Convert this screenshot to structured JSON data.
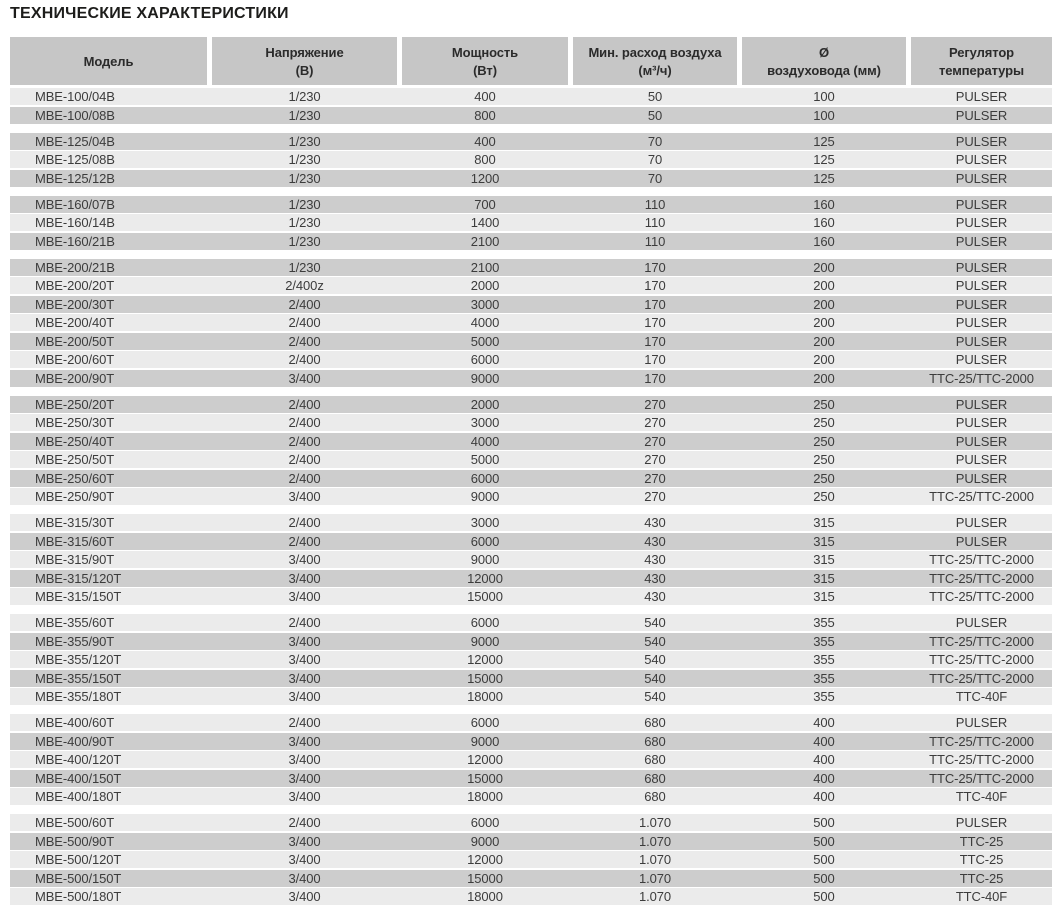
{
  "title": "ТЕХНИЧЕСКИЕ ХАРАКТЕРИСТИКИ",
  "colors": {
    "header_bg": "#c6c6c6",
    "row_light": "#ebebeb",
    "row_dark": "#cdcdcd",
    "text": "#3c3c3c",
    "title_text": "#1d1d1b"
  },
  "table": {
    "headers": [
      {
        "name": "model",
        "line1": "Модель",
        "line2": ""
      },
      {
        "name": "voltage",
        "line1": "Напряжение",
        "line2": "(В)"
      },
      {
        "name": "power",
        "line1": "Мощность",
        "line2": "(Вт)"
      },
      {
        "name": "airflow",
        "line1": "Мин. расход воздуха",
        "line2": "(м³/ч)"
      },
      {
        "name": "diameter",
        "line1": "Ø",
        "line2": "воздуховода (мм)"
      },
      {
        "name": "regulator",
        "line1": "Регулятор",
        "line2": "температуры"
      }
    ],
    "groups": [
      {
        "rows": [
          [
            "MBE-100/04B",
            "1/230",
            "400",
            "50",
            "100",
            "PULSER"
          ],
          [
            "MBE-100/08B",
            "1/230",
            "800",
            "50",
            "100",
            "PULSER"
          ]
        ]
      },
      {
        "rows": [
          [
            "MBE-125/04B",
            "1/230",
            "400",
            "70",
            "125",
            "PULSER"
          ],
          [
            "MBE-125/08B",
            "1/230",
            "800",
            "70",
            "125",
            "PULSER"
          ],
          [
            "MBE-125/12B",
            "1/230",
            "1200",
            "70",
            "125",
            "PULSER"
          ]
        ]
      },
      {
        "rows": [
          [
            "MBE-160/07B",
            "1/230",
            "700",
            "110",
            "160",
            "PULSER"
          ],
          [
            "MBE-160/14B",
            "1/230",
            "1400",
            "110",
            "160",
            "PULSER"
          ],
          [
            "MBE-160/21B",
            "1/230",
            "2100",
            "110",
            "160",
            "PULSER"
          ]
        ]
      },
      {
        "rows": [
          [
            "MBE-200/21B",
            "1/230",
            "2100",
            "170",
            "200",
            "PULSER"
          ],
          [
            "MBE-200/20T",
            "2/400z",
            "2000",
            "170",
            "200",
            "PULSER"
          ],
          [
            "MBE-200/30T",
            "2/400",
            "3000",
            "170",
            "200",
            "PULSER"
          ],
          [
            "MBE-200/40T",
            "2/400",
            "4000",
            "170",
            "200",
            "PULSER"
          ],
          [
            "MBE-200/50T",
            "2/400",
            "5000",
            "170",
            "200",
            "PULSER"
          ],
          [
            "MBE-200/60T",
            "2/400",
            "6000",
            "170",
            "200",
            "PULSER"
          ],
          [
            "MBE-200/90T",
            "3/400",
            "9000",
            "170",
            "200",
            "TTC-25/TTC-2000"
          ]
        ]
      },
      {
        "rows": [
          [
            "MBE-250/20T",
            "2/400",
            "2000",
            "270",
            "250",
            "PULSER"
          ],
          [
            "MBE-250/30T",
            "2/400",
            "3000",
            "270",
            "250",
            "PULSER"
          ],
          [
            "MBE-250/40T",
            "2/400",
            "4000",
            "270",
            "250",
            "PULSER"
          ],
          [
            "MBE-250/50T",
            "2/400",
            "5000",
            "270",
            "250",
            "PULSER"
          ],
          [
            "MBE-250/60T",
            "2/400",
            "6000",
            "270",
            "250",
            "PULSER"
          ],
          [
            "MBE-250/90T",
            "3/400",
            "9000",
            "270",
            "250",
            "TTC-25/TTC-2000"
          ]
        ]
      },
      {
        "rows": [
          [
            "MBE-315/30T",
            "2/400",
            "3000",
            "430",
            "315",
            "PULSER"
          ],
          [
            "MBE-315/60T",
            "2/400",
            "6000",
            "430",
            "315",
            "PULSER"
          ],
          [
            "MBE-315/90T",
            "3/400",
            "9000",
            "430",
            "315",
            "TTC-25/TTC-2000"
          ],
          [
            "MBE-315/120T",
            "3/400",
            "12000",
            "430",
            "315",
            "TTC-25/TTC-2000"
          ],
          [
            "MBE-315/150T",
            "3/400",
            "15000",
            "430",
            "315",
            "TTC-25/TTC-2000"
          ]
        ]
      },
      {
        "rows": [
          [
            "MBE-355/60T",
            "2/400",
            "6000",
            "540",
            "355",
            "PULSER"
          ],
          [
            "MBE-355/90T",
            "3/400",
            "9000",
            "540",
            "355",
            "TTC-25/TTC-2000"
          ],
          [
            "MBE-355/120T",
            "3/400",
            "12000",
            "540",
            "355",
            "TTC-25/TTC-2000"
          ],
          [
            "MBE-355/150T",
            "3/400",
            "15000",
            "540",
            "355",
            "TTC-25/TTC-2000"
          ],
          [
            "MBE-355/180T",
            "3/400",
            "18000",
            "540",
            "355",
            "TTC-40F"
          ]
        ]
      },
      {
        "rows": [
          [
            "MBE-400/60T",
            "2/400",
            "6000",
            "680",
            "400",
            "PULSER"
          ],
          [
            "MBE-400/90T",
            "3/400",
            "9000",
            "680",
            "400",
            "TTC-25/TTC-2000"
          ],
          [
            "MBE-400/120T",
            "3/400",
            "12000",
            "680",
            "400",
            "TTC-25/TTC-2000"
          ],
          [
            "MBE-400/150T",
            "3/400",
            "15000",
            "680",
            "400",
            "TTC-25/TTC-2000"
          ],
          [
            "MBE-400/180T",
            "3/400",
            "18000",
            "680",
            "400",
            "TTC-40F"
          ]
        ]
      },
      {
        "rows": [
          [
            "MBE-500/60T",
            "2/400",
            "6000",
            "1.070",
            "500",
            "PULSER"
          ],
          [
            "MBE-500/90T",
            "3/400",
            "9000",
            "1.070",
            "500",
            "TTC-25"
          ],
          [
            "MBE-500/120T",
            "3/400",
            "12000",
            "1.070",
            "500",
            "TTC-25"
          ],
          [
            "MBE-500/150T",
            "3/400",
            "15000",
            "1.070",
            "500",
            "TTC-25"
          ],
          [
            "MBE-500/180T",
            "3/400",
            "18000",
            "1.070",
            "500",
            "TTC-40F"
          ]
        ]
      }
    ]
  }
}
